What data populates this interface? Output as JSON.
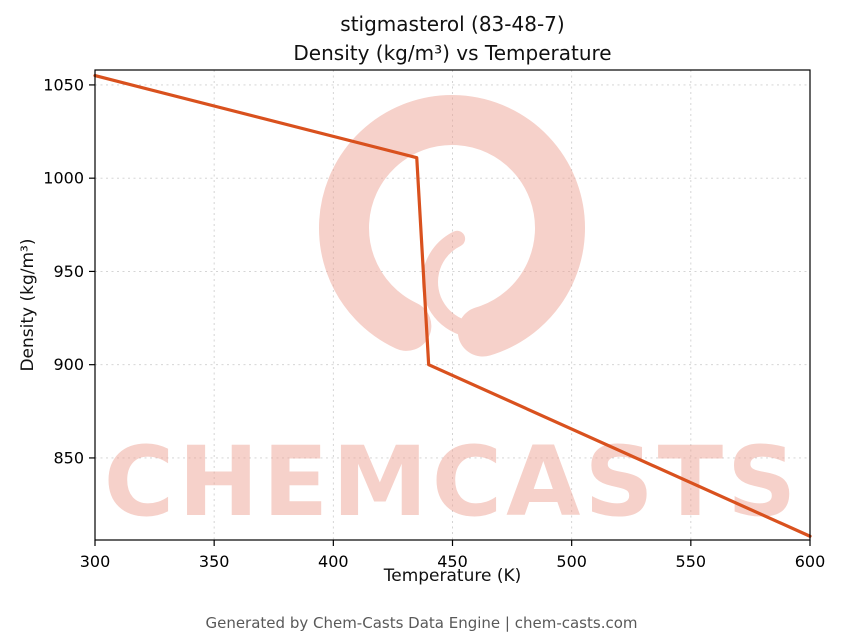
{
  "page": {
    "title_line1": "stigmasterol (83-48-7)",
    "title_line2": "Density (kg/m³) vs Temperature",
    "footer": "Generated by Chem-Casts Data Engine | chem-casts.com"
  },
  "chart_data": {
    "type": "line",
    "title": "stigmasterol (83-48-7) Density (kg/m³) vs Temperature",
    "xlabel": "Temperature (K)",
    "ylabel": "Density (kg/m³)",
    "xlim": [
      300,
      600
    ],
    "ylim": [
      806,
      1058
    ],
    "xticks": [
      300,
      350,
      400,
      450,
      500,
      550,
      600
    ],
    "yticks": [
      850,
      900,
      950,
      1000,
      1050
    ],
    "grid": true,
    "grid_style": "dashed",
    "legend": false,
    "series": [
      {
        "name": "Density",
        "color": "#d9511e",
        "points": [
          [
            300,
            1055
          ],
          [
            435,
            1011
          ],
          [
            440,
            900
          ],
          [
            600,
            808
          ]
        ]
      }
    ],
    "watermark": {
      "text": "CHEMCASTS",
      "color": "#eda394"
    }
  }
}
